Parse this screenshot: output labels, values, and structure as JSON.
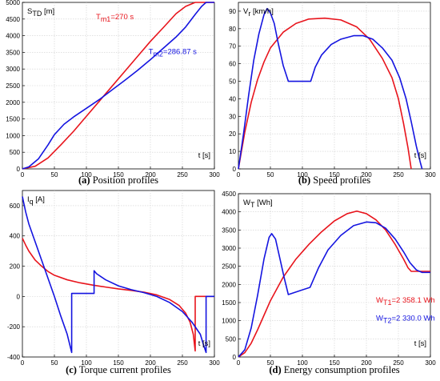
{
  "chart_data": [
    {
      "id": "a",
      "type": "line",
      "ylabel_main": "S",
      "ylabel_sub": "TD",
      "ylabel_unit": " [m]",
      "xlabel": "t [s]",
      "caption_letter": "(a)",
      "caption_text": " Position profiles",
      "xlim": [
        0,
        300
      ],
      "ylim": [
        0,
        5000
      ],
      "xticks": [
        0,
        50,
        100,
        150,
        200,
        250,
        300
      ],
      "yticks": [
        0,
        500,
        1000,
        1500,
        2000,
        2500,
        3000,
        3500,
        4000,
        4500,
        5000
      ],
      "grid": true,
      "annotations": [
        {
          "main": "T",
          "sub": "m1",
          "rest": "=270 s",
          "color": "#e8141c",
          "x": 115,
          "y": 4500
        },
        {
          "main": "T",
          "sub": "m2",
          "rest": "=286.87 s",
          "color": "#1414e0",
          "x": 197,
          "y": 3450
        }
      ],
      "series": [
        {
          "color": "#e8141c",
          "points": [
            [
              0,
              0
            ],
            [
              20,
              80
            ],
            [
              40,
              330
            ],
            [
              60,
              720
            ],
            [
              80,
              1130
            ],
            [
              100,
              1580
            ],
            [
              120,
              2030
            ],
            [
              140,
              2480
            ],
            [
              160,
              2930
            ],
            [
              180,
              3380
            ],
            [
              200,
              3830
            ],
            [
              220,
              4240
            ],
            [
              240,
              4660
            ],
            [
              255,
              4880
            ],
            [
              270,
              5000
            ],
            [
              300,
              5000
            ]
          ]
        },
        {
          "color": "#1414e0",
          "points": [
            [
              0,
              0
            ],
            [
              10,
              60
            ],
            [
              25,
              300
            ],
            [
              40,
              720
            ],
            [
              50,
              1030
            ],
            [
              65,
              1340
            ],
            [
              80,
              1560
            ],
            [
              100,
              1820
            ],
            [
              120,
              2080
            ],
            [
              140,
              2370
            ],
            [
              160,
              2660
            ],
            [
              180,
              2960
            ],
            [
              200,
              3280
            ],
            [
              220,
              3620
            ],
            [
              240,
              3960
            ],
            [
              255,
              4260
            ],
            [
              270,
              4640
            ],
            [
              280,
              4880
            ],
            [
              287,
              5000
            ],
            [
              300,
              5000
            ]
          ]
        }
      ]
    },
    {
      "id": "b",
      "type": "line",
      "ylabel_main": "V",
      "ylabel_sub": "r",
      "ylabel_unit": " [km/h]",
      "xlabel": "t [s]",
      "caption_letter": "(b)",
      "caption_text": " Speed profiles",
      "xlim": [
        0,
        300
      ],
      "ylim": [
        0,
        95
      ],
      "xticks": [
        0,
        50,
        100,
        150,
        200,
        250,
        300
      ],
      "yticks": [
        0,
        10,
        20,
        30,
        40,
        50,
        60,
        70,
        80,
        90
      ],
      "grid": true,
      "annotations": [],
      "series": [
        {
          "color": "#e8141c",
          "points": [
            [
              0,
              0
            ],
            [
              10,
              21
            ],
            [
              20,
              38
            ],
            [
              30,
              51
            ],
            [
              40,
              61
            ],
            [
              50,
              69
            ],
            [
              70,
              78
            ],
            [
              90,
              83
            ],
            [
              110,
              85.5
            ],
            [
              135,
              86
            ],
            [
              160,
              85
            ],
            [
              185,
              81
            ],
            [
              205,
              74
            ],
            [
              225,
              63
            ],
            [
              240,
              52
            ],
            [
              250,
              40
            ],
            [
              258,
              26
            ],
            [
              265,
              12
            ],
            [
              270,
              0
            ]
          ]
        },
        {
          "color": "#1414e0",
          "points": [
            [
              0,
              0
            ],
            [
              8,
              20
            ],
            [
              16,
              42
            ],
            [
              24,
              62
            ],
            [
              32,
              77
            ],
            [
              40,
              88
            ],
            [
              45,
              91.5
            ],
            [
              50,
              89
            ],
            [
              56,
              83
            ],
            [
              62,
              72
            ],
            [
              70,
              59
            ],
            [
              78,
              50
            ],
            [
              113,
              50
            ],
            [
              120,
              58
            ],
            [
              130,
              65
            ],
            [
              145,
              71
            ],
            [
              160,
              74
            ],
            [
              180,
              76
            ],
            [
              195,
              76
            ],
            [
              210,
              74
            ],
            [
              225,
              69
            ],
            [
              240,
              62
            ],
            [
              252,
              52
            ],
            [
              262,
              40
            ],
            [
              270,
              27
            ],
            [
              278,
              13
            ],
            [
              284,
              4
            ],
            [
              287,
              0
            ]
          ]
        }
      ]
    },
    {
      "id": "c",
      "type": "line",
      "ylabel_main": "I",
      "ylabel_sub": "q",
      "ylabel_unit": " [A]",
      "xlabel": "t [s]",
      "caption_letter": "(c)",
      "caption_text": " Torque current profiles",
      "xlim": [
        0,
        300
      ],
      "ylim": [
        -400,
        700
      ],
      "xticks": [
        0,
        50,
        100,
        150,
        200,
        250,
        300
      ],
      "yticks": [
        -400,
        -200,
        0,
        200,
        400,
        600
      ],
      "grid": true,
      "annotations": [],
      "series": [
        {
          "color": "#e8141c",
          "points": [
            [
              0,
              385
            ],
            [
              5,
              340
            ],
            [
              10,
              300
            ],
            [
              20,
              240
            ],
            [
              30,
              200
            ],
            [
              40,
              165
            ],
            [
              50,
              140
            ],
            [
              70,
              110
            ],
            [
              90,
              90
            ],
            [
              110,
              75
            ],
            [
              130,
              62
            ],
            [
              150,
              50
            ],
            [
              170,
              40
            ],
            [
              190,
              28
            ],
            [
              210,
              10
            ],
            [
              230,
              -20
            ],
            [
              245,
              -60
            ],
            [
              255,
              -110
            ],
            [
              262,
              -170
            ],
            [
              267,
              -250
            ],
            [
              270,
              -360
            ],
            [
              270,
              0
            ],
            [
              300,
              0
            ]
          ]
        },
        {
          "color": "#1414e0",
          "points": [
            [
              0,
              660
            ],
            [
              5,
              560
            ],
            [
              10,
              480
            ],
            [
              20,
              360
            ],
            [
              30,
              240
            ],
            [
              40,
              120
            ],
            [
              50,
              0
            ],
            [
              60,
              -130
            ],
            [
              70,
              -250
            ],
            [
              77,
              -370
            ],
            [
              77,
              20
            ],
            [
              112,
              20
            ],
            [
              112,
              170
            ],
            [
              116,
              150
            ],
            [
              130,
              110
            ],
            [
              150,
              70
            ],
            [
              170,
              45
            ],
            [
              190,
              25
            ],
            [
              210,
              0
            ],
            [
              230,
              -40
            ],
            [
              250,
              -100
            ],
            [
              265,
              -170
            ],
            [
              278,
              -250
            ],
            [
              283,
              -320
            ],
            [
              287,
              -370
            ],
            [
              287,
              0
            ],
            [
              300,
              0
            ]
          ]
        }
      ]
    },
    {
      "id": "d",
      "type": "line",
      "ylabel_main": "W",
      "ylabel_sub": "T",
      "ylabel_unit": " [Wh]",
      "xlabel": "t [s]",
      "caption_letter": "(d)",
      "caption_text": " Energy consumption profiles",
      "xlim": [
        0,
        300
      ],
      "ylim": [
        0,
        4500
      ],
      "xticks": [
        0,
        50,
        100,
        150,
        200,
        250,
        300
      ],
      "yticks": [
        0,
        500,
        1000,
        1500,
        2000,
        2500,
        3000,
        3500,
        4000,
        4500
      ],
      "grid": true,
      "annotations": [
        {
          "main": "W",
          "sub": "T1",
          "rest": "=2 358.1 Wh",
          "color": "#e8141c",
          "x": 215,
          "y": 1500
        },
        {
          "main": "W",
          "sub": "T2",
          "rest": "=2 330.0 Wh",
          "color": "#1414e0",
          "x": 215,
          "y": 1000
        }
      ],
      "series": [
        {
          "color": "#e8141c",
          "points": [
            [
              0,
              0
            ],
            [
              10,
              120
            ],
            [
              20,
              380
            ],
            [
              30,
              750
            ],
            [
              40,
              1150
            ],
            [
              50,
              1550
            ],
            [
              70,
              2200
            ],
            [
              90,
              2700
            ],
            [
              110,
              3100
            ],
            [
              130,
              3450
            ],
            [
              150,
              3750
            ],
            [
              170,
              3950
            ],
            [
              185,
              4020
            ],
            [
              200,
              3950
            ],
            [
              215,
              3780
            ],
            [
              230,
              3500
            ],
            [
              245,
              3100
            ],
            [
              258,
              2700
            ],
            [
              265,
              2460
            ],
            [
              270,
              2360
            ],
            [
              300,
              2360
            ]
          ]
        },
        {
          "color": "#1414e0",
          "points": [
            [
              0,
              0
            ],
            [
              10,
              200
            ],
            [
              20,
              800
            ],
            [
              30,
              1700
            ],
            [
              40,
              2700
            ],
            [
              48,
              3300
            ],
            [
              52,
              3400
            ],
            [
              58,
              3250
            ],
            [
              65,
              2700
            ],
            [
              72,
              2150
            ],
            [
              78,
              1720
            ],
            [
              112,
              1920
            ],
            [
              125,
              2450
            ],
            [
              140,
              2950
            ],
            [
              160,
              3350
            ],
            [
              180,
              3620
            ],
            [
              200,
              3720
            ],
            [
              215,
              3700
            ],
            [
              230,
              3550
            ],
            [
              245,
              3250
            ],
            [
              258,
              2900
            ],
            [
              268,
              2600
            ],
            [
              278,
              2400
            ],
            [
              287,
              2330
            ],
            [
              300,
              2330
            ]
          ]
        }
      ]
    }
  ]
}
